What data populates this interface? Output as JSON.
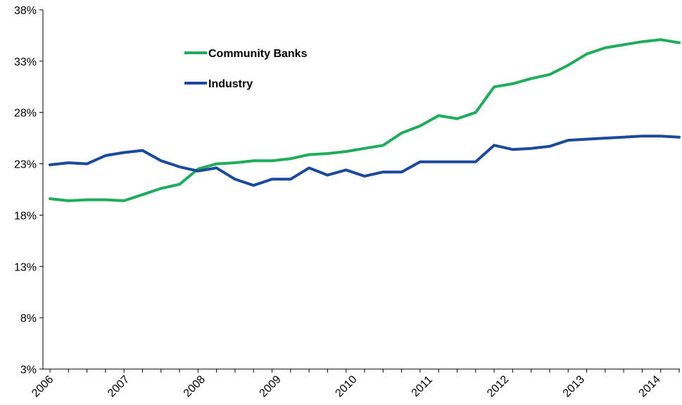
{
  "chart_data": {
    "type": "line",
    "title": "",
    "xlabel": "",
    "ylabel": "",
    "x": [
      "2006Q1",
      "2006Q2",
      "2006Q3",
      "2006Q4",
      "2007Q1",
      "2007Q2",
      "2007Q3",
      "2007Q4",
      "2008Q1",
      "2008Q2",
      "2008Q3",
      "2008Q4",
      "2009Q1",
      "2009Q2",
      "2009Q3",
      "2009Q4",
      "2010Q1",
      "2010Q2",
      "2010Q3",
      "2010Q4",
      "2011Q1",
      "2011Q2",
      "2011Q3",
      "2011Q4",
      "2012Q1",
      "2012Q2",
      "2012Q3",
      "2012Q4",
      "2013Q1",
      "2013Q2",
      "2013Q3",
      "2013Q4",
      "2014Q1",
      "2014Q2",
      "2014Q3"
    ],
    "x_tick_labels": [
      "2006",
      "2007",
      "2008",
      "2009",
      "2010",
      "2011",
      "2012",
      "2013",
      "2014"
    ],
    "y_tick_labels": [
      "3%",
      "8%",
      "13%",
      "18%",
      "23%",
      "28%",
      "33%",
      "38%"
    ],
    "ylim": [
      3,
      38
    ],
    "grid": false,
    "legend_position": "top-left",
    "series": [
      {
        "name": "Community Banks",
        "color": "#1fad5c",
        "values": [
          19.6,
          19.4,
          19.5,
          19.5,
          19.4,
          20.0,
          20.6,
          21.0,
          22.5,
          23.0,
          23.1,
          23.3,
          23.3,
          23.5,
          23.9,
          24.0,
          24.2,
          24.5,
          24.8,
          26.0,
          26.7,
          27.7,
          27.4,
          28.0,
          30.5,
          30.8,
          31.3,
          31.7,
          32.6,
          33.7,
          34.3,
          34.6,
          34.9,
          35.1,
          34.8
        ]
      },
      {
        "name": "Industry",
        "color": "#1a4a9e",
        "values": [
          22.9,
          23.1,
          23.0,
          23.8,
          24.1,
          24.3,
          23.3,
          22.7,
          22.3,
          22.6,
          21.5,
          20.9,
          21.5,
          21.5,
          22.6,
          21.9,
          22.4,
          21.8,
          22.2,
          22.2,
          23.2,
          23.2,
          23.2,
          23.2,
          24.8,
          24.4,
          24.5,
          24.7,
          25.3,
          25.4,
          25.5,
          25.6,
          25.7,
          25.7,
          25.6
        ]
      }
    ]
  }
}
